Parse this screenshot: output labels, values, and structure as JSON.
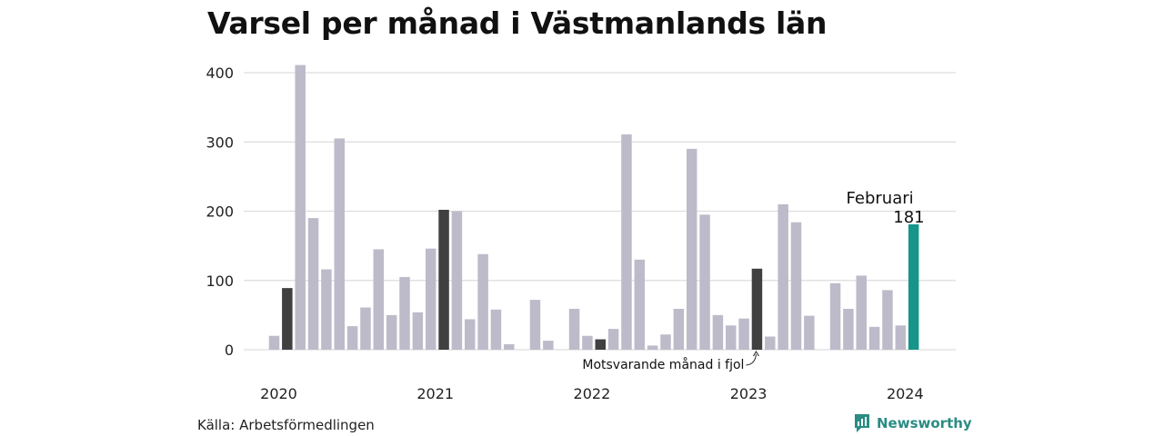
{
  "title": "Varsel per månad i Västmanlands län",
  "source": "Källa: Arbetsförmedlingen",
  "brand": {
    "name": "Newsworthy",
    "icon": "newsworthy-logo-icon"
  },
  "colors": {
    "default_bar": "#bdbbc9",
    "comparison_bar": "#404040",
    "highlight_bar": "#17958a",
    "grid": "#dddddd",
    "brand": "#2a8c83"
  },
  "chart_data": {
    "type": "bar",
    "title": "Varsel per månad i Västmanlands län",
    "xlabel": "",
    "ylabel": "",
    "ylim": [
      0,
      420
    ],
    "yticks": [
      0,
      100,
      200,
      300,
      400
    ],
    "grid": true,
    "year_labels": [
      "2020",
      "2021",
      "2022",
      "2023",
      "2024"
    ],
    "months": [
      "2020-01",
      "2020-02",
      "2020-03",
      "2020-04",
      "2020-05",
      "2020-06",
      "2020-07",
      "2020-08",
      "2020-09",
      "2020-10",
      "2020-11",
      "2020-12",
      "2021-01",
      "2021-02",
      "2021-03",
      "2021-04",
      "2021-05",
      "2021-06",
      "2021-07",
      "2021-08",
      "2021-09",
      "2021-10",
      "2021-11",
      "2021-12",
      "2022-01",
      "2022-02",
      "2022-03",
      "2022-04",
      "2022-05",
      "2022-06",
      "2022-07",
      "2022-08",
      "2022-09",
      "2022-10",
      "2022-11",
      "2022-12",
      "2023-01",
      "2023-02",
      "2023-03",
      "2023-04",
      "2023-05",
      "2023-06",
      "2023-07",
      "2023-08",
      "2023-09",
      "2023-10",
      "2023-11",
      "2023-12",
      "2024-01",
      "2024-02"
    ],
    "values": [
      20,
      89,
      411,
      190,
      116,
      305,
      34,
      61,
      145,
      50,
      105,
      54,
      146,
      202,
      200,
      44,
      138,
      58,
      8,
      0,
      72,
      13,
      0,
      59,
      20,
      15,
      30,
      311,
      130,
      6,
      22,
      59,
      290,
      195,
      50,
      35,
      45,
      117,
      19,
      210,
      184,
      49,
      0,
      96,
      59,
      107,
      33,
      86,
      35,
      181
    ],
    "comparison_months": [
      "2020-02",
      "2021-02",
      "2022-02",
      "2023-02"
    ],
    "highlight_month": "2024-02",
    "annotations": [
      {
        "month": "2024-02",
        "label": "Februari",
        "value_label": "181"
      },
      {
        "month": "2023-02",
        "label": "Motsvarande månad i fjol"
      }
    ]
  }
}
